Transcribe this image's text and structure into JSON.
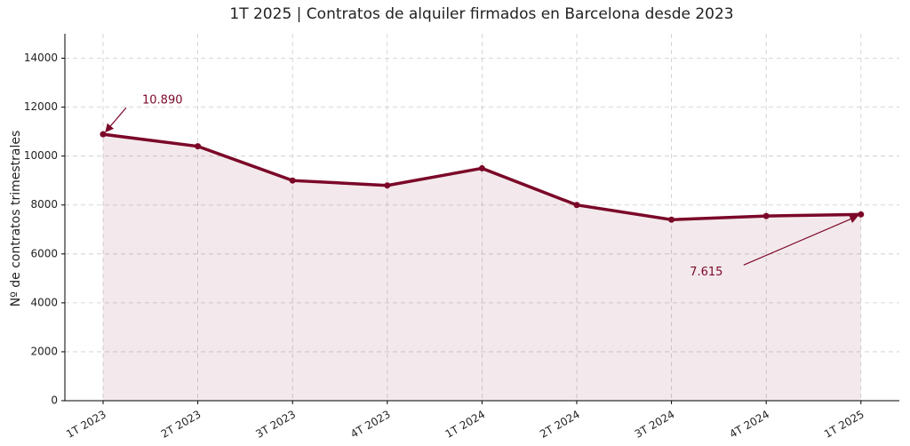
{
  "chart_data": {
    "type": "line",
    "title": "1T 2025 | Contratos de alquiler firmados en Barcelona desde 2023",
    "y_label": "Nº de contratos trimestrales",
    "categories": [
      "1T 2023",
      "2T 2023",
      "3T 2023",
      "4T 2023",
      "1T 2024",
      "2T 2024",
      "3T 2024",
      "4T 2024",
      "1T 2025"
    ],
    "values": [
      10890,
      10400,
      9000,
      8800,
      9500,
      8000,
      7400,
      7550,
      7615
    ],
    "value_labels": [
      "10.890",
      null,
      null,
      null,
      null,
      null,
      null,
      null,
      "7.615"
    ],
    "color": "#7b0828",
    "fill_area": true,
    "ylim": [
      0,
      15000
    ],
    "yticks": [
      0,
      2000,
      4000,
      6000,
      8000,
      10000,
      12000,
      14000
    ],
    "grid": true
  }
}
